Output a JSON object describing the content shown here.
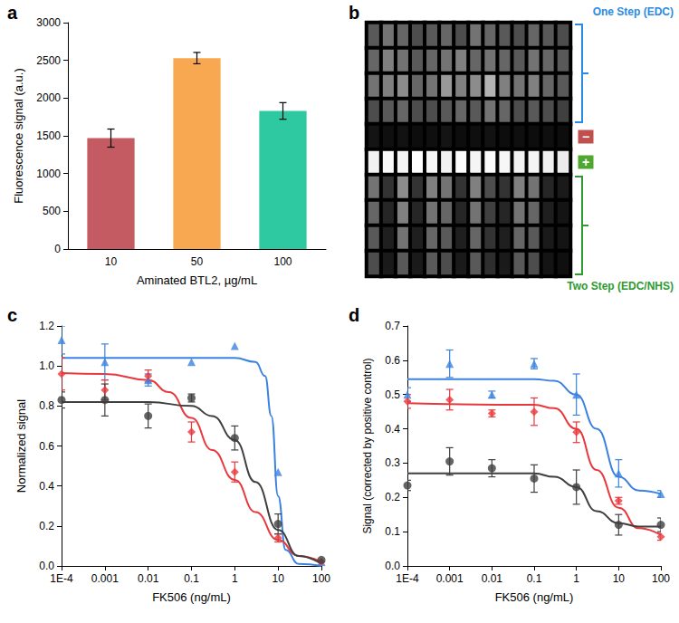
{
  "chart_data": [
    {
      "type": "bar",
      "title": "a",
      "x_label": "Aminated BTL2, µg/mL",
      "y_label": "Fluorescence signal (a.u.)",
      "categories": [
        "10",
        "50",
        "100"
      ],
      "values": [
        1470,
        2530,
        1830
      ],
      "errors": [
        120,
        75,
        110
      ],
      "colors": [
        "#c45a62",
        "#f8a851",
        "#2ec9a0"
      ],
      "ylim": [
        0,
        3000
      ],
      "yticks": [
        0,
        500,
        1000,
        1500,
        2000,
        2500,
        3000
      ],
      "grid": false
    },
    {
      "type": "heatmap",
      "title": "b",
      "tick_labels": false,
      "color_range": [
        0,
        1
      ],
      "cells": [
        [
          0.35,
          0.45,
          0.4,
          0.3,
          0.35,
          0.4,
          0.3,
          0.45,
          0.4,
          0.35,
          0.3,
          0.4,
          0.35,
          0.3
        ],
        [
          0.4,
          0.5,
          0.45,
          0.35,
          0.4,
          0.45,
          0.5,
          0.4,
          0.45,
          0.4,
          0.35,
          0.45,
          0.4,
          0.35
        ],
        [
          0.45,
          0.5,
          0.55,
          0.4,
          0.45,
          0.6,
          0.5,
          0.55,
          0.7,
          0.5,
          0.45,
          0.5,
          0.4,
          0.35
        ],
        [
          0.3,
          0.35,
          0.4,
          0.3,
          0.3,
          0.35,
          0.4,
          0.35,
          0.45,
          0.4,
          0.3,
          0.35,
          0.3,
          0.25
        ],
        [
          0.08,
          0.06,
          0.07,
          0.05,
          0.06,
          0.08,
          0.05,
          0.06,
          0.07,
          0.05,
          0.06,
          0.05,
          0.06,
          0.05
        ],
        [
          0.95,
          0.98,
          0.96,
          1.0,
          0.97,
          0.95,
          0.99,
          0.96,
          0.98,
          0.97,
          0.95,
          0.96,
          0.94,
          0.92
        ],
        [
          0.45,
          0.2,
          0.55,
          0.2,
          0.5,
          0.45,
          0.2,
          0.5,
          0.3,
          0.2,
          0.5,
          0.45,
          0.15,
          0.1
        ],
        [
          0.4,
          0.15,
          0.5,
          0.15,
          0.45,
          0.4,
          0.15,
          0.45,
          0.25,
          0.15,
          0.45,
          0.4,
          0.12,
          0.08
        ],
        [
          0.35,
          0.12,
          0.45,
          0.12,
          0.4,
          0.35,
          0.12,
          0.4,
          0.2,
          0.12,
          0.4,
          0.35,
          0.1,
          0.08
        ],
        [
          0.3,
          0.1,
          0.35,
          0.1,
          0.35,
          0.3,
          0.1,
          0.35,
          0.18,
          0.1,
          0.35,
          0.3,
          0.08,
          0.06
        ]
      ],
      "groups": [
        {
          "label": "One Step (EDC)",
          "rows": 4,
          "color": "#2a8be0"
        },
        {
          "label": "−",
          "rows": 1,
          "color": "#c0504d"
        },
        {
          "label": "+",
          "rows": 1,
          "color": "#4ea72e"
        },
        {
          "label": "Two Step (EDC/NHS)",
          "rows": 4,
          "color": "#2e9a30"
        }
      ]
    },
    {
      "type": "scatter",
      "title": "c",
      "log": "x",
      "grid": false,
      "x_label": "FK506 (ng/mL)",
      "y_label": "Normalized signal",
      "x": [
        0.0001,
        0.001,
        0.01,
        0.1,
        1,
        10,
        100
      ],
      "xlim": [
        0.0001,
        100
      ],
      "xticks": [
        {
          "value": 0.0001,
          "label": "1E-4"
        },
        0.001,
        0.01,
        0.1,
        1,
        10,
        100
      ],
      "ylim": [
        0,
        1.2
      ],
      "yticks": [
        {
          "value": 0,
          "label": "0.0"
        },
        0.2,
        0.4,
        0.6,
        0.8,
        {
          "value": 1,
          "label": "1.0"
        },
        1.2
      ],
      "series": [
        {
          "type": "line",
          "color": "#3b82e0",
          "x": [
            0.0001,
            0.01,
            1,
            3,
            5,
            7,
            10,
            15,
            30,
            100
          ],
          "values": [
            1.04,
            1.04,
            1.04,
            1.02,
            0.95,
            0.75,
            0.35,
            0.08,
            0.01,
            0.0
          ]
        },
        {
          "type": "line",
          "color": "#e8383d",
          "x": [
            0.0001,
            0.001,
            0.01,
            0.03,
            0.1,
            0.3,
            1,
            3,
            10,
            30,
            100
          ],
          "values": [
            0.965,
            0.96,
            0.93,
            0.87,
            0.74,
            0.58,
            0.43,
            0.27,
            0.13,
            0.05,
            0.02
          ]
        },
        {
          "type": "line",
          "color": "#3f3f3f",
          "x": [
            0.0001,
            0.01,
            0.1,
            0.3,
            1,
            3,
            10,
            30,
            100
          ],
          "values": [
            0.82,
            0.82,
            0.8,
            0.75,
            0.63,
            0.42,
            0.18,
            0.05,
            0.01
          ]
        },
        {
          "type": "scatter",
          "color": "#3b82e0",
          "marker": "triangle",
          "values": [
            1.13,
            1.02,
            0.93,
            1.02,
            1.1,
            0.47,
            0.02
          ],
          "errors": [
            0.07,
            0.09,
            0.03,
            0.0,
            0.0,
            0.0,
            0.0
          ]
        },
        {
          "type": "scatter",
          "color": "#e8383d",
          "marker": "diamond",
          "values": [
            0.96,
            0.88,
            0.95,
            0.67,
            0.47,
            0.14,
            0.02
          ],
          "errors": [
            0.08,
            0.05,
            0.03,
            0.05,
            0.05,
            0.02,
            0.0
          ]
        },
        {
          "type": "scatter",
          "color": "#3f3f3f",
          "marker": "circle",
          "values": [
            0.83,
            0.83,
            0.75,
            0.84,
            0.64,
            0.21,
            0.03
          ],
          "errors": [
            0.04,
            0.08,
            0.06,
            0.02,
            0.06,
            0.05,
            0.0
          ]
        }
      ]
    },
    {
      "type": "scatter",
      "title": "d",
      "log": "x",
      "grid": false,
      "x_label": "FK506 (ng/mL)",
      "y_label": "Signal (corrected by positive control)",
      "x": [
        0.0001,
        0.001,
        0.01,
        0.1,
        1,
        10,
        100
      ],
      "xlim": [
        0.0001,
        100
      ],
      "xticks": [
        {
          "value": 0.0001,
          "label": "1E-4"
        },
        0.001,
        0.01,
        0.1,
        1,
        10,
        100
      ],
      "ylim": [
        0,
        0.7
      ],
      "yticks": [
        {
          "value": 0,
          "label": "0.0"
        },
        0.1,
        0.2,
        0.3,
        0.4,
        0.5,
        0.6,
        0.7
      ],
      "series": [
        {
          "type": "line",
          "color": "#3b82e0",
          "x": [
            0.0001,
            0.1,
            0.3,
            1,
            3,
            10,
            30,
            100
          ],
          "values": [
            0.545,
            0.545,
            0.54,
            0.5,
            0.4,
            0.26,
            0.22,
            0.21
          ]
        },
        {
          "type": "line",
          "color": "#e8383d",
          "x": [
            0.0001,
            0.1,
            0.3,
            1,
            3,
            10,
            30,
            100
          ],
          "values": [
            0.475,
            0.47,
            0.46,
            0.4,
            0.28,
            0.17,
            0.11,
            0.09
          ]
        },
        {
          "type": "line",
          "color": "#3f3f3f",
          "x": [
            0.0001,
            0.1,
            0.3,
            1,
            3,
            10,
            30,
            100
          ],
          "values": [
            0.27,
            0.27,
            0.26,
            0.23,
            0.16,
            0.125,
            0.115,
            0.115
          ]
        },
        {
          "type": "scatter",
          "color": "#3b82e0",
          "marker": "triangle",
          "values": [
            0.5,
            0.59,
            0.5,
            0.59,
            0.5,
            0.27,
            0.21
          ],
          "errors": [
            0.02,
            0.04,
            0.01,
            0.015,
            0.06,
            0.04,
            0.01
          ]
        },
        {
          "type": "scatter",
          "color": "#e8383d",
          "marker": "diamond",
          "values": [
            0.48,
            0.485,
            0.445,
            0.45,
            0.39,
            0.19,
            0.085
          ],
          "errors": [
            0.02,
            0.03,
            0.01,
            0.04,
            0.03,
            0.01,
            0.01
          ]
        },
        {
          "type": "scatter",
          "color": "#3f3f3f",
          "marker": "circle",
          "values": [
            0.235,
            0.305,
            0.285,
            0.255,
            0.23,
            0.12,
            0.12
          ],
          "errors": [
            0.015,
            0.04,
            0.025,
            0.04,
            0.05,
            0.03,
            0.02
          ]
        }
      ]
    }
  ]
}
